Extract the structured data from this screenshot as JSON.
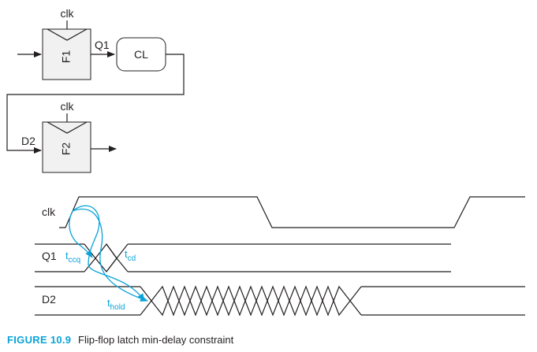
{
  "circuit": {
    "flop1": {
      "label": "F1",
      "clock_label": "clk",
      "output_label": "Q1"
    },
    "logic": {
      "label": "CL"
    },
    "flop2": {
      "label": "F2",
      "clock_label": "clk",
      "input_label": "D2"
    }
  },
  "timing": {
    "signals": [
      "clk",
      "Q1",
      "D2"
    ],
    "annotations": {
      "tccq": {
        "base": "t",
        "sub": "ccq"
      },
      "tcd": {
        "base": "t",
        "sub": "cd"
      },
      "thold": {
        "base": "t",
        "sub": "hold"
      }
    }
  },
  "caption": {
    "figure_label": "FIGURE 10.9",
    "text": "Flip-flop latch min-delay constraint"
  },
  "colors": {
    "accent": "#0aa3d8",
    "ink": "#231f20",
    "block_fill": "#f1f1f1"
  }
}
